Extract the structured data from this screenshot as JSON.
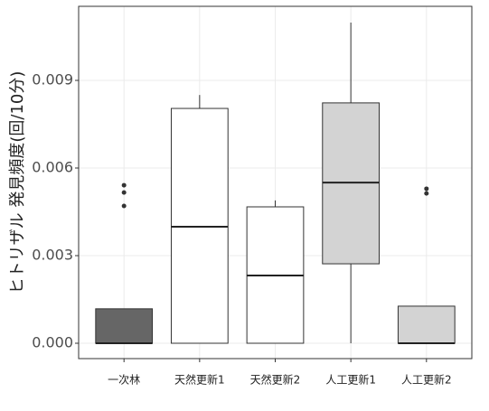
{
  "chart_data": {
    "type": "boxplot",
    "y_label": "ヒトリザル 発見頻度(回/10分)",
    "categories": [
      "一次林",
      "天然更新1",
      "天然更新2",
      "人工更新1",
      "人工更新2"
    ],
    "boxes": [
      {
        "whisker_low": 0,
        "q1": 0,
        "median": 0,
        "q3": 0.00118,
        "whisker_high": 0.00118,
        "outliers": [
          0.00541,
          0.00516,
          0.0047
        ],
        "color": "#666666"
      },
      {
        "whisker_low": 0,
        "q1": 0,
        "median": 0.00399,
        "q3": 0.00804,
        "whisker_high": 0.0085,
        "outliers": [],
        "color": "#ffffff"
      },
      {
        "whisker_low": 0,
        "q1": 0,
        "median": 0.00232,
        "q3": 0.00467,
        "whisker_high": 0.00489,
        "outliers": [],
        "color": "#ffffff"
      },
      {
        "whisker_low": 0,
        "q1": 0.00272,
        "median": 0.0055,
        "q3": 0.00823,
        "whisker_high": 0.01098,
        "outliers": [],
        "color": "#d3d3d3"
      },
      {
        "whisker_low": 0,
        "q1": 0,
        "median": 0,
        "q3": 0.00127,
        "whisker_high": 0.00127,
        "outliers": [
          0.00529,
          0.00513
        ],
        "color": "#d3d3d3"
      }
    ],
    "ylim": [
      -0.000526,
      0.011536
    ],
    "yticks": [
      {
        "value": 0,
        "label": "0.000"
      },
      0.003,
      0.006,
      0.009
    ],
    "grid": true
  }
}
